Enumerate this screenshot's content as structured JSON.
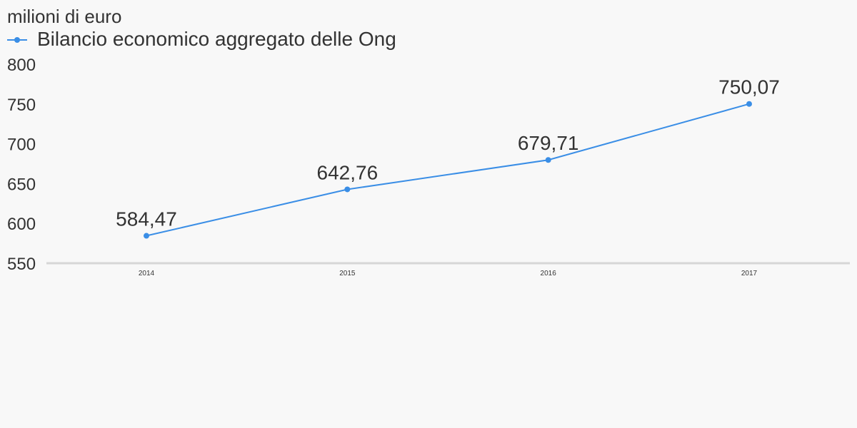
{
  "chart_data": {
    "type": "line",
    "ylabel": "milioni di euro",
    "categories": [
      "2014",
      "2015",
      "2016",
      "2017"
    ],
    "series": [
      {
        "name": "Bilancio economico aggregato delle Ong",
        "values": [
          584.47,
          642.76,
          679.71,
          750.07
        ],
        "value_labels": [
          "584,47",
          "642,76",
          "679,71",
          "750,07"
        ],
        "color": "#3a8ee6"
      }
    ],
    "ylim": [
      550,
      800
    ],
    "yticks": [
      800,
      750,
      700,
      650,
      600,
      550
    ],
    "ytick_labels": [
      "800",
      "750",
      "700",
      "650",
      "600",
      "550"
    ],
    "grid": false,
    "legend": "top-left"
  }
}
